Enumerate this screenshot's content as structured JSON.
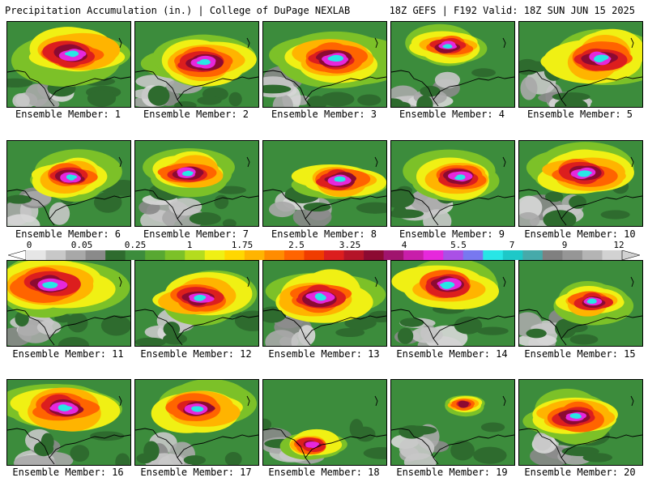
{
  "header": {
    "left": "Precipitation Accumulation (in.) | College of DuPage NEXLAB",
    "right": "18Z GEFS | F192 Valid: 18Z SUN JUN 15 2025"
  },
  "legend": {
    "ticks": [
      "0",
      "0.05",
      "0.25",
      "1",
      "1.75",
      "2.5",
      "3.25",
      "4",
      "5.5",
      "7",
      "9",
      "12"
    ],
    "colors": [
      "#e6e6e6",
      "#c8c8c8",
      "#a8a8a8",
      "#8a8a8a",
      "#2e6b2e",
      "#3c8c3c",
      "#58a832",
      "#7cc128",
      "#b4dc1e",
      "#f0f014",
      "#ffd700",
      "#ffb400",
      "#ff8c00",
      "#ff6400",
      "#f03c00",
      "#dc1e1e",
      "#b41428",
      "#8c0a32",
      "#a0146e",
      "#c81eaa",
      "#e628dc",
      "#aa50e6",
      "#7878f0",
      "#28e6e6",
      "#1ec8c8",
      "#46aaaa",
      "#808080",
      "#969696",
      "#b4b4b4",
      "#d2d2d2"
    ]
  },
  "members": [
    "Ensemble Member: 1",
    "Ensemble Member: 2",
    "Ensemble Member: 3",
    "Ensemble Member: 4",
    "Ensemble Member: 5",
    "Ensemble Member: 6",
    "Ensemble Member: 7",
    "Ensemble Member: 8",
    "Ensemble Member: 9",
    "Ensemble Member: 10",
    "Ensemble Member: 11",
    "Ensemble Member: 12",
    "Ensemble Member: 13",
    "Ensemble Member: 14",
    "Ensemble Member: 15",
    "Ensemble Member: 16",
    "Ensemble Member: 17",
    "Ensemble Member: 18",
    "Ensemble Member: 19",
    "Ensemble Member: 20"
  ]
}
